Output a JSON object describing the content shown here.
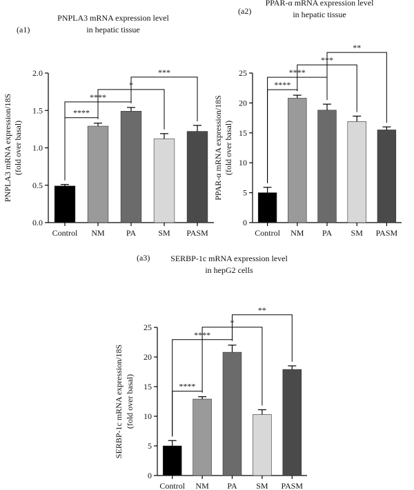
{
  "chart_data": [
    {
      "type": "bar",
      "panel_label": "(a1)",
      "title_lines": [
        "PNPLA3 mRNA expression level",
        "in hepatic tissue"
      ],
      "ylabel_lines": [
        "PNPLA3 mRNA expression/18S",
        "(fold over basal)"
      ],
      "categories": [
        "Control",
        "NM",
        "PA",
        "SM",
        "PASM"
      ],
      "values": [
        0.49,
        1.29,
        1.49,
        1.12,
        1.22
      ],
      "errors": [
        0.02,
        0.04,
        0.05,
        0.07,
        0.08
      ],
      "colors": [
        "#000000",
        "#9a9a9a",
        "#6b6b6b",
        "#d8d8d8",
        "#4a4a4a"
      ],
      "ylim": [
        0,
        2.0
      ],
      "yticks": [
        0,
        0.5,
        1.0,
        1.5,
        2.0
      ],
      "ytick_labels": [
        "0.0",
        "0.5",
        "1.0",
        "1.5",
        "2.0"
      ],
      "significance": [
        {
          "from": 0,
          "to": 1,
          "stars": "****"
        },
        {
          "from": 0,
          "to": 2,
          "stars": "****"
        },
        {
          "from": 1,
          "to": 3,
          "stars": "*"
        },
        {
          "from": 2,
          "to": 4,
          "stars": "***"
        }
      ]
    },
    {
      "type": "bar",
      "panel_label": "(a2)",
      "title_lines": [
        "PPAR-α mRNA expression level",
        "in hepatic tissue"
      ],
      "ylabel_lines": [
        "PPAR-α mRNA expression/18S",
        "(fold over basal)"
      ],
      "categories": [
        "Control",
        "NM",
        "PA",
        "SM",
        "PASM"
      ],
      "values": [
        5.0,
        20.8,
        18.8,
        16.9,
        15.5
      ],
      "errors": [
        0.9,
        0.5,
        1.0,
        0.9,
        0.5
      ],
      "colors": [
        "#000000",
        "#9a9a9a",
        "#6b6b6b",
        "#d8d8d8",
        "#4a4a4a"
      ],
      "ylim": [
        0,
        25
      ],
      "yticks": [
        0,
        5,
        10,
        15,
        20,
        25
      ],
      "ytick_labels": [
        "0",
        "5",
        "10",
        "15",
        "20",
        "25"
      ],
      "significance": [
        {
          "from": 0,
          "to": 1,
          "stars": "****"
        },
        {
          "from": 0,
          "to": 2,
          "stars": "****"
        },
        {
          "from": 1,
          "to": 3,
          "stars": "***"
        },
        {
          "from": 2,
          "to": 4,
          "stars": "**"
        }
      ]
    },
    {
      "type": "bar",
      "panel_label": "(a3)",
      "title_lines": [
        "SERBP-1c mRNA expression level",
        "in hepG2 cells"
      ],
      "ylabel_lines": [
        "SERBP-1c mRNA expression/18S",
        "(fold over basal)"
      ],
      "categories": [
        "Control",
        "NM",
        "PA",
        "SM",
        "PASM"
      ],
      "values": [
        5.0,
        12.9,
        20.8,
        10.3,
        17.9
      ],
      "errors": [
        0.9,
        0.4,
        1.2,
        0.8,
        0.6
      ],
      "colors": [
        "#000000",
        "#9a9a9a",
        "#6b6b6b",
        "#d8d8d8",
        "#4a4a4a"
      ],
      "ylim": [
        0,
        25
      ],
      "yticks": [
        0,
        5,
        10,
        15,
        20,
        25
      ],
      "ytick_labels": [
        "0",
        "5",
        "10",
        "15",
        "20",
        "25"
      ],
      "significance": [
        {
          "from": 0,
          "to": 1,
          "stars": "****"
        },
        {
          "from": 0,
          "to": 2,
          "stars": "****"
        },
        {
          "from": 1,
          "to": 3,
          "stars": "*"
        },
        {
          "from": 2,
          "to": 4,
          "stars": "**"
        }
      ]
    }
  ]
}
